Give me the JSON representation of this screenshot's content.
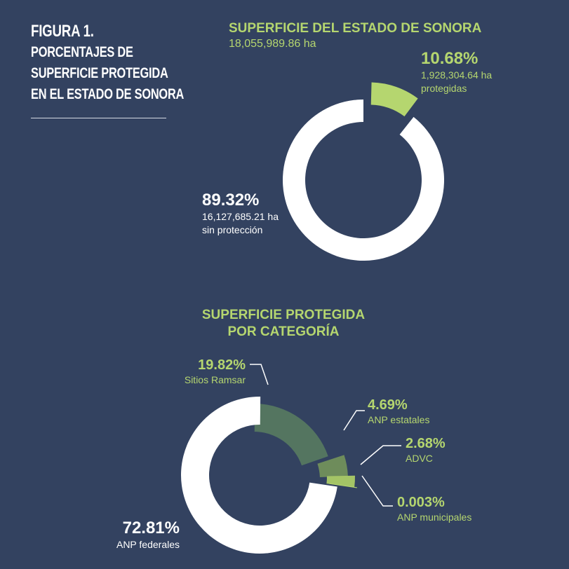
{
  "figure": {
    "number": "FIGURA 1.",
    "title_lines": [
      "PORCENTAJES DE",
      "SUPERFICIE PROTEGIDA",
      "EN EL ESTADO DE SONORA"
    ]
  },
  "chart_data": [
    {
      "type": "pie",
      "title": "SUPERFICIE DEL ESTADO DE SONORA",
      "subtitle": "18,055,989.86 ha",
      "series": [
        {
          "percent_label": "10.68%",
          "value": 10.68,
          "detail_1": "1,928,304.64 ha",
          "detail_2": "protegidas",
          "color": "#b5d66f"
        },
        {
          "percent_label": "89.32%",
          "value": 89.32,
          "detail_1": "16,127,685.21 ha",
          "detail_2": "sin protección",
          "color": "#ffffff"
        }
      ]
    },
    {
      "type": "pie",
      "title_lines": [
        "SUPERFICIE PROTEGIDA",
        "POR CATEGORÍA"
      ],
      "series": [
        {
          "percent_label": "19.82%",
          "value": 19.82,
          "name": "Sitios Ramsar",
          "color": "#547560"
        },
        {
          "percent_label": "4.69%",
          "value": 4.69,
          "name": "ANP estatales",
          "color": "#6e8c5b"
        },
        {
          "percent_label": "2.68%",
          "value": 2.68,
          "name": "ADVC",
          "color": "#a4c466"
        },
        {
          "percent_label": "0.003%",
          "value": 0.003,
          "name": "ANP municipales",
          "color": "#b5d66f"
        },
        {
          "percent_label": "72.81%",
          "value": 72.81,
          "name": "ANP federales",
          "color": "#ffffff"
        }
      ]
    }
  ]
}
